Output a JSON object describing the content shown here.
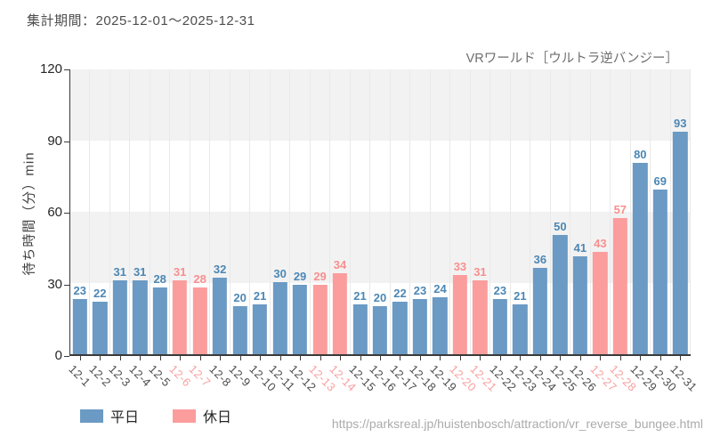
{
  "header": {
    "period_label": "集計期間：2025-12-01～2025-12-31"
  },
  "legend": {
    "weekday_label": "平日",
    "holiday_label": "休日"
  },
  "footer": {
    "url": "https://parksreal.jp/huistenbosch/attraction/vr_reverse_bungee.html"
  },
  "colors": {
    "weekday_bar": "#6b9ac4",
    "holiday_bar": "#fb9d9d",
    "weekday_value_label": "#4c87b4",
    "holiday_value_label": "#f88f8e",
    "weekday_tick_label": "#4d4d4d",
    "holiday_tick_label": "#f9a09f",
    "axis": "#3a3a3a",
    "band": "#f2f2f2",
    "gridline": "#e9e9e9"
  },
  "chart_data": {
    "type": "bar",
    "title": "VRワールド［ウルトラ逆バンジー］",
    "xlabel": "",
    "ylabel": "待ち時間（分）min",
    "ylim": [
      0,
      120
    ],
    "yticks": [
      0,
      30,
      60,
      90,
      120
    ],
    "grid": "horizontal-bands-and-vertical-gridlines",
    "legend_position": "bottom-left",
    "categories": [
      "12-1",
      "12-2",
      "12-3",
      "12-4",
      "12-5",
      "12-6",
      "12-7",
      "12-8",
      "12-9",
      "12-10",
      "12-11",
      "12-12",
      "12-13",
      "12-14",
      "12-15",
      "12-16",
      "12-17",
      "12-18",
      "12-19",
      "12-20",
      "12-21",
      "12-22",
      "12-23",
      "12-24",
      "12-25",
      "12-26",
      "12-27",
      "12-28",
      "12-29",
      "12-30",
      "12-31"
    ],
    "values": [
      23,
      22,
      31,
      31,
      28,
      31,
      28,
      32,
      20,
      21,
      30,
      29,
      29,
      34,
      21,
      20,
      22,
      23,
      24,
      33,
      31,
      23,
      21,
      36,
      50,
      41,
      43,
      57,
      80,
      69,
      93
    ],
    "day_types": [
      "weekday",
      "weekday",
      "weekday",
      "weekday",
      "weekday",
      "holiday",
      "holiday",
      "weekday",
      "weekday",
      "weekday",
      "weekday",
      "weekday",
      "holiday",
      "holiday",
      "weekday",
      "weekday",
      "weekday",
      "weekday",
      "weekday",
      "holiday",
      "holiday",
      "weekday",
      "weekday",
      "weekday",
      "weekday",
      "weekday",
      "holiday",
      "holiday",
      "weekday",
      "weekday",
      "weekday"
    ],
    "series_legend": [
      {
        "name": "平日",
        "role": "weekday"
      },
      {
        "name": "休日",
        "role": "holiday"
      }
    ]
  }
}
